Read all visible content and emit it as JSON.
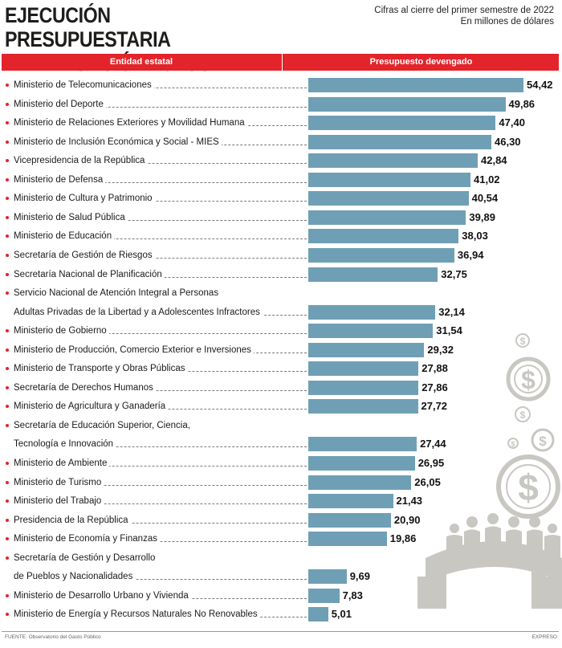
{
  "header": {
    "title_line1": "EJECUCIÓN PRESUPUESTARIA",
    "title_line2": "DE LA FUNCIÓN EJECUTIVA",
    "subtitle_line1": "Cifras al cierre del primer semestre de 2022",
    "subtitle_line2": "En millones de dólares",
    "col_entity": "Entidad estatal",
    "col_budget": "Presupuesto devengado"
  },
  "footer": {
    "source": "FUENTE: Observatorio del Gasto Público",
    "credit": "EXPRESO"
  },
  "colors": {
    "accent": "#e3242b",
    "bar": "#6f9fb5",
    "icons": "#c9c7c2"
  },
  "icons": [
    "dollar-coin-icon",
    "people-around-table-icon"
  ],
  "chart_data": {
    "type": "bar",
    "orientation": "horizontal",
    "title": "EJECUCIÓN PRESUPUESTARIA DE LA FUNCIÓN EJECUTIVA",
    "subtitle": "Cifras al cierre del primer semestre de 2022 — En millones de dólares",
    "xlim": [
      0,
      54.42
    ],
    "grid": false,
    "legend": "none",
    "categories": [
      [
        "Ministerio de Telecomunicaciones"
      ],
      [
        "Ministerio del Deporte"
      ],
      [
        "Ministerio de Relaciones Exteriores y Movilidad Humana"
      ],
      [
        "Ministerio de Inclusión Económica y Social - MIES"
      ],
      [
        "Vicepresidencia de la República"
      ],
      [
        "Ministerio de Defensa"
      ],
      [
        "Ministerio de Cultura y Patrimonio"
      ],
      [
        "Ministerio de Salud Pública"
      ],
      [
        "Ministerio de Educación"
      ],
      [
        "Secretaría de Gestión de Riesgos"
      ],
      [
        "Secretaría Nacional de Planificación"
      ],
      [
        "Servicio Nacional de Atención Integral a Personas",
        "Adultas Privadas de la Libertad y a Adolescentes Infractores"
      ],
      [
        "Ministerio de Gobierno"
      ],
      [
        "Ministerio de Producción, Comercio Exterior e Inversiones"
      ],
      [
        "Ministerio de Transporte y Obras Públicas"
      ],
      [
        "Secretaría de Derechos Humanos"
      ],
      [
        "Ministerio de Agricultura y Ganadería"
      ],
      [
        "Secretaría de Educación Superior, Ciencia,",
        "Tecnología e Innovación"
      ],
      [
        "Ministerio de Ambiente"
      ],
      [
        "Ministerio de Turismo"
      ],
      [
        "Ministerio del Trabajo"
      ],
      [
        "Presidencia de la República"
      ],
      [
        "Ministerio de Economía y Finanzas"
      ],
      [
        "Secretaría de Gestión y Desarrollo",
        "de Pueblos y Nacionalidades"
      ],
      [
        "Ministerio de Desarrollo Urbano y Vivienda"
      ],
      [
        "Ministerio de Energía y Recursos Naturales No Renovables"
      ]
    ],
    "values": [
      54.42,
      49.86,
      47.4,
      46.3,
      42.84,
      41.02,
      40.54,
      39.89,
      38.03,
      36.94,
      32.75,
      32.14,
      31.54,
      29.32,
      27.88,
      27.86,
      27.72,
      27.44,
      26.95,
      26.05,
      21.43,
      20.9,
      19.86,
      9.69,
      7.83,
      5.01
    ],
    "value_labels": [
      "54,42",
      "49,86",
      "47,40",
      "46,30",
      "42,84",
      "41,02",
      "40,54",
      "39,89",
      "38,03",
      "36,94",
      "32,75",
      "32,14",
      "31,54",
      "29,32",
      "27,88",
      "27,86",
      "27,72",
      "27,44",
      "26,95",
      "26,05",
      "21,43",
      "20,90",
      "19,86",
      "9,69",
      "7,83",
      "5,01"
    ]
  }
}
